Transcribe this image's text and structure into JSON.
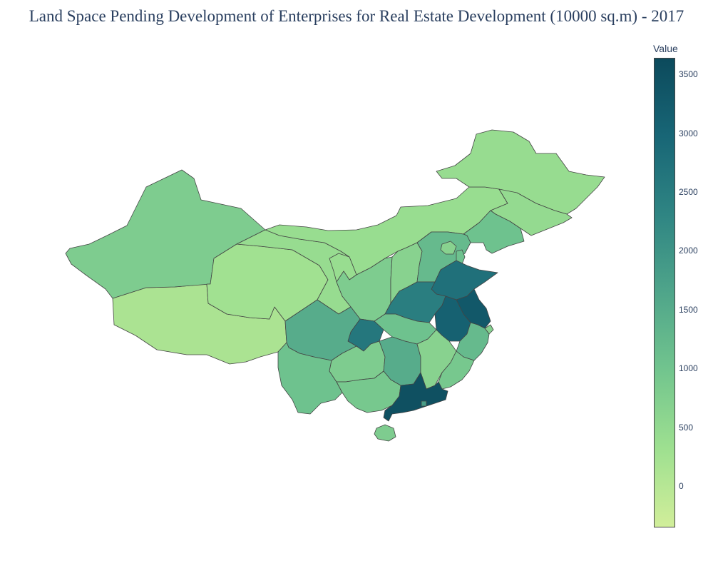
{
  "title": "Land Space Pending Development of Enterprises for Real Estate Development (10000 sq.m) - 2017",
  "colorbar": {
    "title": "Value",
    "min": -350,
    "max": 3640,
    "ticks": [
      "0",
      "500",
      "1000",
      "1500",
      "2000",
      "2500",
      "3000",
      "3500"
    ],
    "tick_values": [
      0,
      500,
      1000,
      1500,
      2000,
      2500,
      3000,
      3500
    ],
    "colorscale": [
      "#d1ee9a",
      "#9ee090",
      "#72c58e",
      "#4fa58a",
      "#2f8583",
      "#186676",
      "#0c4a5c"
    ]
  },
  "chart_data": {
    "type": "choropleth",
    "region_values": {
      "Tibet": 150,
      "Xinjiang": 800,
      "Qinghai": 280,
      "Gansu": 420,
      "Inner Mongolia": 400,
      "Heilongjiang": 420,
      "Jilin": 460,
      "Liaoning": 1050,
      "Ningxia": 400,
      "Shaanxi": 800,
      "Shanxi": 650,
      "Hebei": 1200,
      "Beijing": 650,
      "Tianjin": 1050,
      "Shandong": 2750,
      "Henan": 2450,
      "Jiangsu": 3300,
      "Anhui": 3100,
      "Shanghai": 700,
      "Hubei": 1050,
      "Chongqing": 2600,
      "Sichuan": 1500,
      "Yunnan": 1050,
      "Guizhou": 800,
      "Hunan": 1500,
      "Jiangxi": 650,
      "Zhejiang": 1200,
      "Fujian": 900,
      "Guangxi": 900,
      "Guangdong": 3500,
      "Hainan": 800,
      "Hong Kong": 1800
    }
  }
}
